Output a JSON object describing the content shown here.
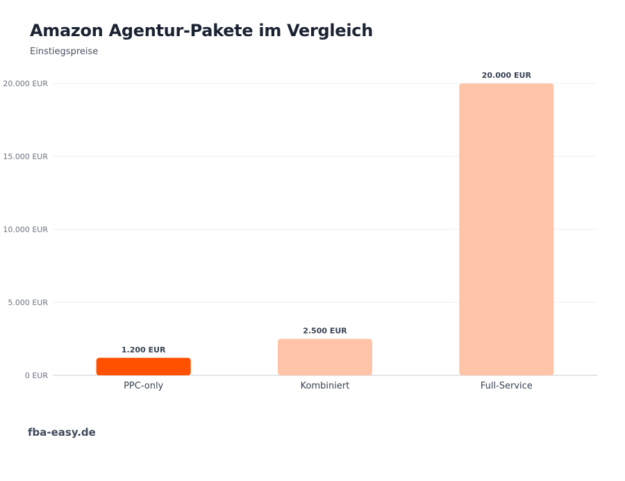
{
  "title": "Amazon Agentur-Pakete im Vergleich",
  "subtitle": "Einstiegspreise",
  "source": "fba-easy.de",
  "colors": {
    "highlight": "#ff5100",
    "bar": "#ffc4a8",
    "grid": "#eceff3",
    "axis": "#c7cbd1"
  },
  "chart_data": {
    "type": "bar",
    "categories": [
      "PPC-only",
      "Kombiniert",
      "Full-Service"
    ],
    "values": [
      1200,
      2500,
      20000
    ],
    "value_labels": [
      "1.200 EUR",
      "2.500 EUR",
      "20.000 EUR"
    ],
    "highlight_index": 0,
    "ylim": [
      0,
      20000
    ],
    "yticks": [
      0,
      5000,
      10000,
      15000,
      20000
    ],
    "ytick_labels": [
      "0 EUR",
      "5.000 EUR",
      "10.000 EUR",
      "15.000 EUR",
      "20.000 EUR"
    ],
    "grid": true
  }
}
